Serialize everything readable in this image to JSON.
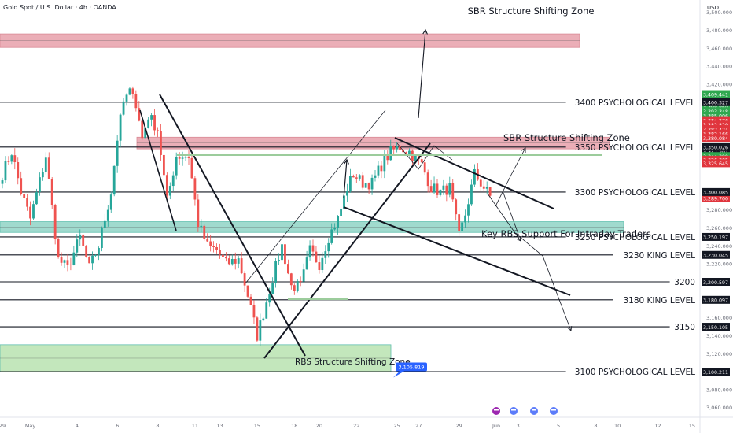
{
  "header": {
    "symbol": "Gold Spot / U.S. Dollar · 4h · OANDA",
    "currency": "USD"
  },
  "colors": {
    "bull": "#26a69a",
    "bear": "#ef5350",
    "sbr_zone": "#e8a0aa",
    "rbs_zone": "#8fd3c6",
    "rbs_low_zone": "#b9e3b0",
    "tag_green": "#2fa84f",
    "tag_red": "#e0353d",
    "tag_black": "#131722",
    "tag_blue": "#2962ff",
    "flag_gray": "#9aa0a6"
  },
  "chart_data": {
    "type": "candlestick",
    "y_range": [
      3051,
      3505
    ],
    "y_ticks": [
      "3,500.000",
      "3,480.000",
      "3,460.000",
      "3,440.000",
      "3,420.000",
      "3,280.000",
      "3,260.000",
      "3,240.000",
      "3,220.000",
      "3,160.000",
      "3,140.000",
      "3,120.000",
      "3,080.000",
      "3,060.000"
    ],
    "x_ticks": [
      {
        "label": "29",
        "idx": 0
      },
      {
        "label": "May",
        "idx": 9
      },
      {
        "label": "4",
        "idx": 24
      },
      {
        "label": "6",
        "idx": 37
      },
      {
        "label": "8",
        "idx": 50
      },
      {
        "label": "11",
        "idx": 62
      },
      {
        "label": "13",
        "idx": 70
      },
      {
        "label": "15",
        "idx": 82
      },
      {
        "label": "18",
        "idx": 94
      },
      {
        "label": "20",
        "idx": 102
      },
      {
        "label": "22",
        "idx": 114
      },
      {
        "label": "25",
        "idx": 127
      },
      {
        "label": "27",
        "idx": 134
      },
      {
        "label": "29",
        "idx": 147
      },
      {
        "label": "Jun",
        "idx": 159
      },
      {
        "label": "3",
        "idx": 166
      },
      {
        "label": "5",
        "idx": 179
      },
      {
        "label": "8",
        "idx": 191
      },
      {
        "label": "10",
        "idx": 198
      },
      {
        "label": "12",
        "idx": 211
      },
      {
        "label": "15",
        "idx": 222
      }
    ],
    "candle_seed": {
      "count": 158,
      "anchors": [
        [
          0,
          3320
        ],
        [
          3,
          3345
        ],
        [
          6,
          3300
        ],
        [
          9,
          3270
        ],
        [
          14,
          3340
        ],
        [
          18,
          3225
        ],
        [
          21,
          3215
        ],
        [
          25,
          3250
        ],
        [
          28,
          3215
        ],
        [
          31,
          3240
        ],
        [
          35,
          3300
        ],
        [
          37,
          3360
        ],
        [
          39,
          3400
        ],
        [
          42,
          3415
        ],
        [
          45,
          3360
        ],
        [
          47,
          3385
        ],
        [
          50,
          3370
        ],
        [
          53,
          3290
        ],
        [
          56,
          3340
        ],
        [
          60,
          3340
        ],
        [
          63,
          3265
        ],
        [
          66,
          3240
        ],
        [
          69,
          3235
        ],
        [
          72,
          3220
        ],
        [
          76,
          3225
        ],
        [
          79,
          3185
        ],
        [
          82,
          3140
        ],
        [
          84,
          3165
        ],
        [
          87,
          3205
        ],
        [
          90,
          3240
        ],
        [
          93,
          3195
        ],
        [
          96,
          3195
        ],
        [
          99,
          3235
        ],
        [
          102,
          3220
        ],
        [
          105,
          3250
        ],
        [
          108,
          3270
        ],
        [
          111,
          3305
        ],
        [
          113,
          3320
        ],
        [
          116,
          3310
        ],
        [
          119,
          3310
        ],
        [
          122,
          3330
        ],
        [
          125,
          3345
        ],
        [
          128,
          3350
        ],
        [
          131,
          3345
        ],
        [
          135,
          3330
        ],
        [
          138,
          3305
        ],
        [
          141,
          3300
        ],
        [
          144,
          3305
        ],
        [
          147,
          3250
        ],
        [
          149,
          3275
        ],
        [
          152,
          3320
        ],
        [
          154,
          3310
        ],
        [
          157,
          3295
        ]
      ]
    },
    "levels": [
      {
        "price": 3400,
        "label": "3400 PSYCHOLOGICAL LEVEL",
        "tag": "3,400.327"
      },
      {
        "price": 3350,
        "label": "3350 PSYCHOLOGICAL LEVEL",
        "tag": "3,350.026"
      },
      {
        "price": 3300,
        "label": "3300 PSYCHOLOGICAL LEVEL",
        "tag": "3,300.085"
      },
      {
        "price": 3250,
        "label": "3250 PSYCHOLOGICAL LEVEL",
        "tag": "3,250.197"
      },
      {
        "price": 3230,
        "label": "3230 KING LEVEL",
        "tag": "3,230.045"
      },
      {
        "price": 3200,
        "label": "3200",
        "tag": "3,200.597"
      },
      {
        "price": 3180,
        "label": "3180 KING LEVEL",
        "tag": "3,180.097"
      },
      {
        "price": 3150,
        "label": "3150",
        "tag": "3,150.105"
      },
      {
        "price": 3100,
        "label": "3100 PSYCHOLOGICAL LEVEL",
        "tag": "3,100.211"
      }
    ],
    "zones": [
      {
        "label": "SBR Structure Shifting Zone",
        "top": 3476,
        "bottom": 3461,
        "x0": 0,
        "x1": 737,
        "kind": "sbr"
      },
      {
        "label": "SBR Structure Shifting Zone",
        "top": 3361,
        "bottom": 3348,
        "x0": 174,
        "x1": 775,
        "kind": "sbr"
      },
      {
        "label": "Key RBS Support For Intraday Traders",
        "top": 3267,
        "bottom": 3255,
        "x0": 0,
        "x1": 793,
        "kind": "rbs"
      },
      {
        "label": "RBS Structure Shifting Zone",
        "top": 3130,
        "bottom": 3100,
        "x0": 0,
        "x1": 497,
        "kind": "rbs_low"
      }
    ],
    "price_tags": [
      {
        "text": "3,409.441",
        "price": 3409,
        "color": "green"
      },
      {
        "text": "3,398.860",
        "price": 3395,
        "color": "green"
      },
      {
        "text": "3,393.348",
        "price": 3390,
        "color": "green"
      },
      {
        "text": "3,385.006",
        "price": 3385,
        "color": "green"
      },
      {
        "text": "3,384.276",
        "price": 3380,
        "color": "red"
      },
      {
        "text": "3,382.829",
        "price": 3375,
        "color": "red"
      },
      {
        "text": "3,382.424",
        "price": 3370,
        "color": "red"
      },
      {
        "text": "3,382.166",
        "price": 3365,
        "color": "red"
      },
      {
        "text": "3,380.084",
        "price": 3360,
        "color": "red"
      },
      {
        "text": "3,347.201",
        "price": 3345,
        "color": "black"
      },
      {
        "text": "3,344.399",
        "price": 3340,
        "color": "green"
      },
      {
        "text": "3,326.305",
        "price": 3336,
        "color": "red"
      },
      {
        "text": "3,325.645",
        "price": 3332,
        "color": "red"
      },
      {
        "text": "3,289.700",
        "price": 3293,
        "color": "red"
      }
    ],
    "callout": {
      "text": "3,105.819",
      "price": 3105.8
    }
  }
}
